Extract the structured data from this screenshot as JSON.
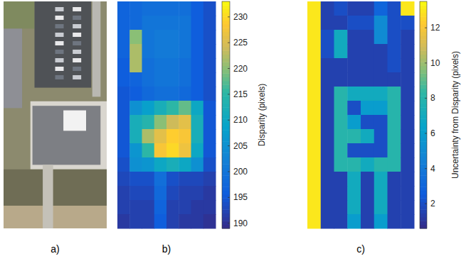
{
  "chart_data": [
    {
      "type": "image",
      "caption": "a)"
    },
    {
      "type": "heatmap",
      "caption": "b)",
      "cells": [
        [
          197,
          198,
          199,
          199,
          199,
          199,
          196,
          194
        ],
        [
          197,
          198,
          200,
          200,
          200,
          200,
          196,
          194
        ],
        [
          197,
          220,
          200,
          201,
          201,
          200,
          196,
          194
        ],
        [
          197,
          222,
          200,
          201,
          201,
          200,
          196,
          194
        ],
        [
          196,
          222,
          199,
          200,
          200,
          199,
          196,
          194
        ],
        [
          196,
          197,
          199,
          200,
          200,
          199,
          196,
          194
        ],
        [
          195,
          196,
          198,
          199,
          199,
          198,
          196,
          194
        ],
        [
          195,
          205,
          208,
          212,
          215,
          218,
          210,
          195
        ],
        [
          195,
          212,
          214,
          220,
          224,
          226,
          212,
          195
        ],
        [
          195,
          212,
          222,
          226,
          229,
          228,
          212,
          195
        ],
        [
          195,
          206,
          215,
          228,
          230,
          227,
          210,
          195
        ],
        [
          194,
          205,
          206,
          210,
          212,
          210,
          205,
          194
        ],
        [
          193,
          194,
          194,
          199,
          194,
          193,
          193,
          192
        ],
        [
          192,
          193,
          193,
          198,
          193,
          192,
          192,
          191
        ],
        [
          192,
          192,
          192,
          197,
          192,
          192,
          191,
          191
        ],
        [
          191,
          192,
          192,
          196,
          192,
          191,
          191,
          190
        ]
      ],
      "colorbar_range": [
        189,
        233
      ],
      "colorbar_ticks": [
        190,
        195,
        200,
        205,
        210,
        215,
        220,
        225,
        230
      ],
      "colorbar_label": "Disparity (pixels)"
    },
    {
      "type": "heatmap",
      "caption": "c)",
      "cells": [
        [
          13,
          1.5,
          2,
          1.5,
          1.5,
          3,
          2,
          13
        ],
        [
          13,
          1.5,
          1.5,
          2,
          2,
          5,
          2,
          2
        ],
        [
          13,
          2,
          7,
          1.5,
          1.5,
          5,
          2,
          1.5
        ],
        [
          13,
          2,
          7,
          1.5,
          1.5,
          1.5,
          2,
          1.5
        ],
        [
          13,
          1.5,
          1.5,
          1.5,
          1.5,
          1.5,
          2,
          1.5
        ],
        [
          13,
          1.5,
          1.5,
          1.5,
          1.5,
          1.5,
          1.5,
          1.5
        ],
        [
          13,
          1.5,
          8,
          7,
          7,
          7,
          8,
          1.5
        ],
        [
          13,
          1.5,
          8,
          2,
          6,
          6,
          8,
          1.5
        ],
        [
          13,
          1.5,
          8,
          6,
          2,
          2,
          8,
          1.5
        ],
        [
          13,
          1.5,
          8,
          8,
          7,
          2,
          8,
          1.5
        ],
        [
          13,
          1.5,
          8,
          2,
          2,
          2,
          8,
          1.5
        ],
        [
          13,
          1.5,
          8,
          8,
          7,
          8,
          8,
          1.5
        ],
        [
          13,
          1.5,
          1.5,
          7,
          1.5,
          7,
          1.5,
          1.5
        ],
        [
          13,
          1.5,
          1.5,
          7,
          1.5,
          7,
          1.5,
          1.5
        ],
        [
          13,
          1.5,
          1.5,
          7,
          1.5,
          7,
          1.5,
          1.5
        ],
        [
          13,
          1.5,
          1.5,
          6,
          1.5,
          6,
          1.5,
          1.5
        ]
      ],
      "colorbar_range": [
        0.6,
        13.5
      ],
      "colorbar_ticks": [
        2,
        4,
        6,
        8,
        10,
        12
      ],
      "colorbar_label": "Uncertainty from Disparity (pixels)"
    }
  ]
}
